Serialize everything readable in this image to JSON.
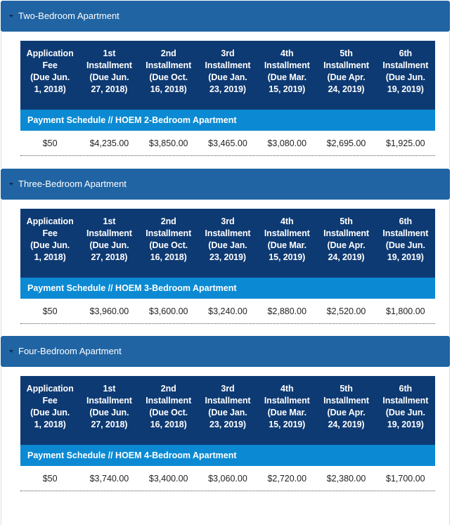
{
  "headers": [
    [
      "Application",
      "Fee",
      "(Due Jun.",
      "1, 2018)"
    ],
    [
      "1st",
      "Installment",
      "(Due Jun.",
      "27, 2018)"
    ],
    [
      "2nd",
      "Installment",
      "(Due Oct.",
      "16, 2018)"
    ],
    [
      "3rd",
      "Installment",
      "(Due Jan.",
      "23, 2019)"
    ],
    [
      "4th",
      "Installment",
      "(Due Mar.",
      "15, 2019)"
    ],
    [
      "5th",
      "Installment",
      "(Due Apr.",
      "24, 2019)"
    ],
    [
      "6th",
      "Installment",
      "(Due Jun.",
      "19, 2019)"
    ]
  ],
  "sections": [
    {
      "title": "Two-Bedroom Apartment",
      "caption": "Payment Schedule // HOEM 2-Bedroom Apartment",
      "values": [
        "$50",
        "$4,235.00",
        "$3,850.00",
        "$3,465.00",
        "$3,080.00",
        "$2,695.00",
        "$1,925.00"
      ]
    },
    {
      "title": "Three-Bedroom Apartment",
      "caption": "Payment Schedule // HOEM 3-Bedroom Apartment",
      "values": [
        "$50",
        "$3,960.00",
        "$3,600.00",
        "$3,240.00",
        "$2,880.00",
        "$2,520.00",
        "$1,800.00"
      ]
    },
    {
      "title": "Four-Bedroom Apartment",
      "caption": "Payment Schedule // HOEM 4-Bedroom Apartment",
      "values": [
        "$50",
        "$3,740.00",
        "$3,400.00",
        "$3,060.00",
        "$2,720.00",
        "$2,380.00",
        "$1,700.00"
      ]
    }
  ]
}
